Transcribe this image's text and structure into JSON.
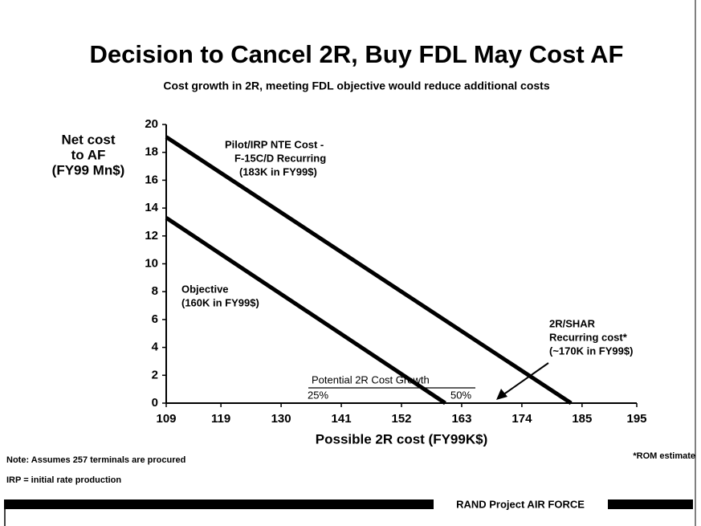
{
  "chart_data": {
    "type": "line",
    "title": "Decision to Cancel 2R, Buy FDL May Cost AF",
    "subtitle": "Cost growth in 2R,  meeting FDL objective would reduce additional costs",
    "y_label": [
      "Net cost",
      "to AF",
      "(FY99 Mn$)"
    ],
    "x_label": "Possible 2R cost (FY99K$)",
    "xlim": [
      109,
      195
    ],
    "xticks": [
      109,
      119,
      130,
      141,
      152,
      163,
      174,
      185,
      195
    ],
    "ylim": [
      0,
      20
    ],
    "yticks": [
      0,
      2,
      4,
      6,
      8,
      10,
      12,
      14,
      16,
      18,
      20
    ],
    "series": [
      {
        "color": "#000000",
        "x": [
          109,
          183
        ],
        "values": [
          19.1,
          0
        ]
      },
      {
        "color": "#000000",
        "x": [
          109,
          160
        ],
        "values": [
          13.3,
          0
        ]
      }
    ],
    "annotations": [
      {
        "lines": [
          "Pilot/IRP NTE Cost -",
          "F-15C/D Recurring",
          "(183K in FY99$)"
        ]
      },
      {
        "lines": [
          "Objective",
          "(160K in FY99$)"
        ]
      },
      {
        "lines": [
          "2R/SHAR",
          "Recurring cost*",
          "(~170K in FY99$)"
        ]
      },
      {
        "lines": [
          "Potential 2R Cost Growth",
          "25%",
          "50%"
        ]
      }
    ],
    "notes": [
      "Note: Assumes 257 terminals are procured",
      "IRP = initial rate production"
    ],
    "footnote": "*ROM estimate",
    "footer": "RAND Project AIR FORCE"
  }
}
